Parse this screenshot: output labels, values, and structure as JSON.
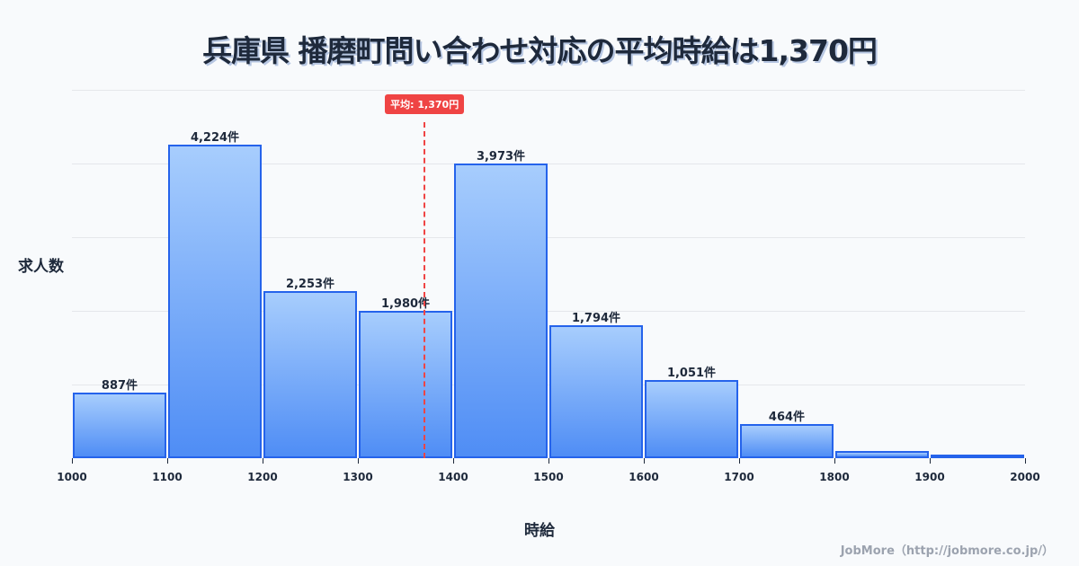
{
  "title": "兵庫県 播磨町問い合わせ対応の平均時給は1,370円",
  "y_axis_label": "求人数",
  "x_axis_label": "時給",
  "credit": "JobMore（http://jobmore.co.jp/）",
  "average": {
    "label": "平均: 1,370円",
    "value": 1370,
    "color": "#ef4444"
  },
  "colors": {
    "bar_top": "#a7cdfd",
    "bar_bottom": "#4f8df5",
    "bar_border": "#2563eb"
  },
  "chart_data": {
    "type": "bar",
    "title": "兵庫県 播磨町問い合わせ対応の平均時給は1,370円",
    "xlabel": "時給",
    "ylabel": "求人数",
    "bins": [
      [
        1000,
        1100
      ],
      [
        1100,
        1200
      ],
      [
        1200,
        1300
      ],
      [
        1300,
        1400
      ],
      [
        1400,
        1500
      ],
      [
        1500,
        1600
      ],
      [
        1600,
        1700
      ],
      [
        1700,
        1800
      ],
      [
        1800,
        1900
      ],
      [
        1900,
        2000
      ]
    ],
    "categories": [
      "1000-1100",
      "1100-1200",
      "1200-1300",
      "1300-1400",
      "1400-1500",
      "1500-1600",
      "1600-1700",
      "1700-1800",
      "1800-1900",
      "1900-2000"
    ],
    "values": [
      887,
      4224,
      2253,
      1980,
      3973,
      1794,
      1051,
      464,
      95,
      45
    ],
    "value_labels": [
      "887件",
      "4,224件",
      "2,253件",
      "1,980件",
      "3,973件",
      "1,794件",
      "1,051件",
      "464件",
      "",
      ""
    ],
    "x_ticks": [
      "1000",
      "1100",
      "1200",
      "1300",
      "1400",
      "1500",
      "1600",
      "1700",
      "1800",
      "1900",
      "2000"
    ],
    "xlim": [
      1000,
      2000
    ],
    "ylim": [
      0,
      4963
    ],
    "grid": true,
    "annotations": [
      {
        "type": "vline",
        "x": 1370,
        "label": "平均: 1,370円",
        "style": "dashed",
        "color": "#ef4444"
      }
    ]
  }
}
